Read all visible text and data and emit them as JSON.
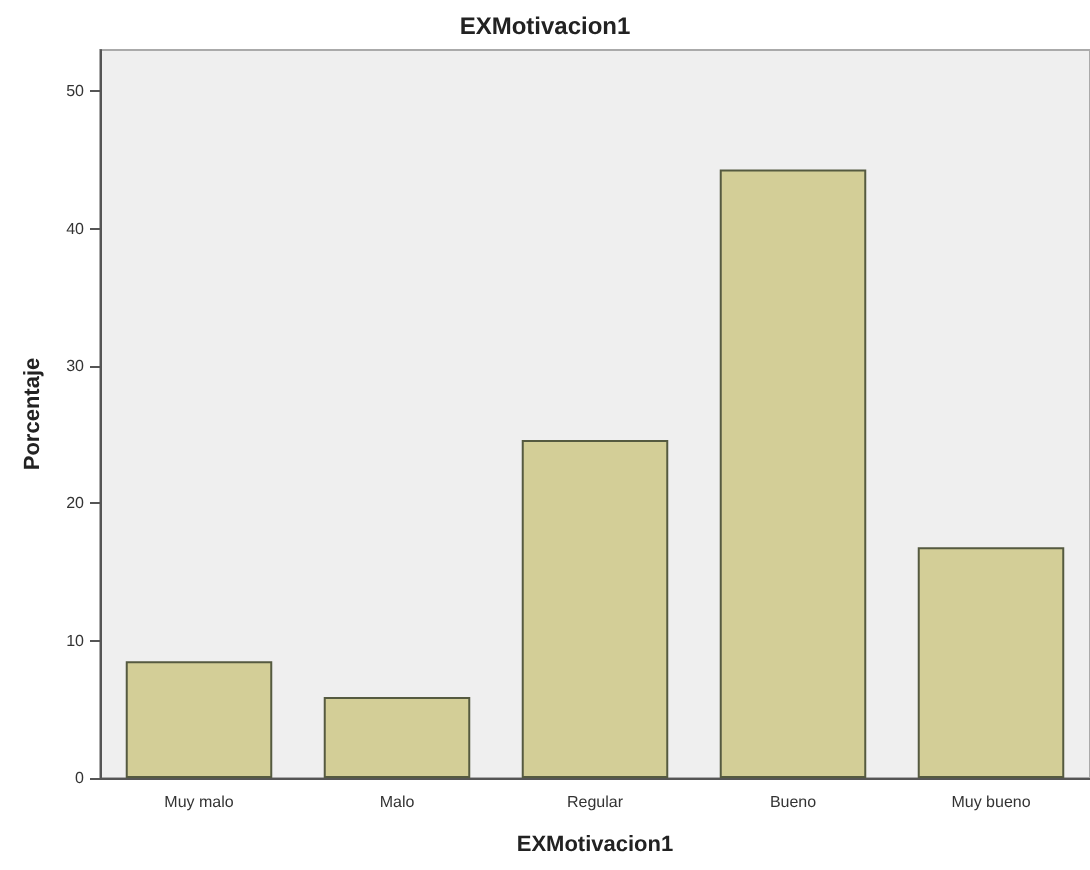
{
  "chart_data": {
    "type": "bar",
    "title": "EXMotivacion1",
    "xlabel": "EXMotivacion1",
    "ylabel": "Porcentaje",
    "categories": [
      "Muy malo",
      "Malo",
      "Regular",
      "Bueno",
      "Muy bueno"
    ],
    "values": [
      8.5,
      5.9,
      24.6,
      44.3,
      16.8
    ],
    "color": "#d3ce97",
    "ylim": [
      0,
      53
    ],
    "yticks": [
      0,
      10,
      20,
      30,
      40,
      50
    ],
    "grid": false
  }
}
